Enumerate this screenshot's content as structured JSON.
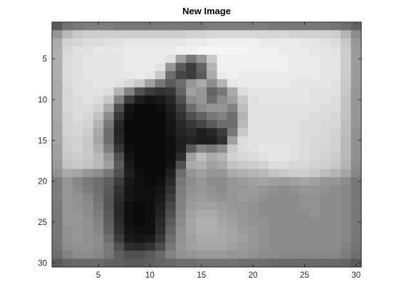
{
  "figure": {
    "title": "New Image"
  },
  "chart_data": {
    "type": "heatmap",
    "title": "New Image",
    "xlabel": "",
    "ylabel": "",
    "colormap": "gray",
    "x_tick_labels": [
      "5",
      "10",
      "15",
      "20",
      "25",
      "30"
    ],
    "y_tick_labels": [
      "5",
      "10",
      "15",
      "20",
      "25",
      "30"
    ],
    "x_ticks": [
      5,
      10,
      15,
      20,
      25,
      30
    ],
    "y_ticks": [
      5,
      10,
      15,
      20,
      25,
      30
    ],
    "xlim": [
      0.5,
      30.5
    ],
    "ylim": [
      0.5,
      30.5
    ],
    "y_direction": "reverse",
    "value_range": [
      0,
      255
    ],
    "rows": 30,
    "cols": 30,
    "values": [
      [
        90,
        115,
        120,
        125,
        125,
        125,
        120,
        120,
        120,
        120,
        120,
        120,
        120,
        120,
        120,
        125,
        125,
        125,
        125,
        125,
        125,
        120,
        120,
        120,
        120,
        120,
        120,
        115,
        110,
        100
      ],
      [
        150,
        185,
        200,
        205,
        205,
        205,
        205,
        205,
        205,
        205,
        205,
        205,
        205,
        210,
        210,
        215,
        215,
        215,
        215,
        215,
        215,
        215,
        215,
        210,
        210,
        210,
        210,
        205,
        180,
        140
      ],
      [
        170,
        210,
        215,
        220,
        220,
        225,
        225,
        230,
        230,
        230,
        230,
        230,
        230,
        235,
        235,
        240,
        240,
        240,
        240,
        240,
        235,
        235,
        235,
        235,
        230,
        230,
        225,
        220,
        200,
        150
      ],
      [
        175,
        215,
        225,
        225,
        230,
        230,
        230,
        235,
        235,
        235,
        235,
        235,
        240,
        240,
        245,
        245,
        245,
        245,
        245,
        240,
        240,
        240,
        235,
        235,
        235,
        230,
        230,
        225,
        205,
        155
      ],
      [
        175,
        220,
        225,
        230,
        230,
        230,
        230,
        235,
        235,
        235,
        235,
        225,
        160,
        120,
        150,
        200,
        240,
        240,
        240,
        240,
        240,
        240,
        240,
        235,
        235,
        235,
        230,
        230,
        205,
        155
      ],
      [
        175,
        220,
        225,
        230,
        230,
        230,
        230,
        235,
        235,
        235,
        225,
        150,
        90,
        60,
        100,
        180,
        240,
        240,
        240,
        240,
        240,
        240,
        240,
        235,
        235,
        235,
        230,
        230,
        205,
        155
      ],
      [
        175,
        220,
        225,
        230,
        230,
        230,
        230,
        230,
        235,
        230,
        200,
        110,
        70,
        60,
        90,
        170,
        235,
        240,
        235,
        235,
        235,
        235,
        235,
        235,
        235,
        235,
        230,
        230,
        205,
        155
      ],
      [
        170,
        220,
        225,
        225,
        230,
        230,
        225,
        215,
        200,
        160,
        120,
        90,
        110,
        150,
        170,
        140,
        180,
        230,
        235,
        235,
        235,
        235,
        235,
        230,
        230,
        230,
        230,
        225,
        200,
        155
      ],
      [
        170,
        215,
        225,
        225,
        225,
        220,
        180,
        130,
        80,
        60,
        50,
        55,
        100,
        160,
        150,
        100,
        120,
        170,
        220,
        230,
        230,
        230,
        230,
        230,
        230,
        225,
        225,
        225,
        200,
        150
      ],
      [
        170,
        215,
        220,
        225,
        220,
        200,
        130,
        60,
        30,
        20,
        25,
        40,
        80,
        140,
        150,
        110,
        140,
        160,
        200,
        225,
        230,
        230,
        230,
        230,
        230,
        225,
        225,
        220,
        195,
        150
      ],
      [
        170,
        215,
        220,
        220,
        210,
        170,
        80,
        20,
        10,
        10,
        15,
        30,
        60,
        110,
        140,
        150,
        150,
        130,
        190,
        225,
        225,
        225,
        225,
        225,
        225,
        225,
        220,
        220,
        195,
        150
      ],
      [
        170,
        210,
        220,
        215,
        195,
        140,
        55,
        15,
        10,
        10,
        10,
        25,
        50,
        80,
        100,
        120,
        130,
        110,
        180,
        225,
        225,
        225,
        225,
        225,
        225,
        220,
        220,
        215,
        195,
        150
      ],
      [
        165,
        210,
        215,
        210,
        180,
        120,
        40,
        10,
        10,
        10,
        10,
        20,
        40,
        55,
        70,
        90,
        110,
        110,
        185,
        225,
        225,
        225,
        225,
        225,
        220,
        220,
        215,
        215,
        190,
        150
      ],
      [
        165,
        210,
        215,
        205,
        170,
        110,
        35,
        10,
        10,
        10,
        10,
        20,
        35,
        45,
        30,
        40,
        60,
        120,
        200,
        225,
        225,
        225,
        225,
        225,
        220,
        220,
        215,
        210,
        190,
        145
      ],
      [
        165,
        205,
        210,
        200,
        165,
        110,
        40,
        10,
        10,
        10,
        10,
        15,
        30,
        35,
        30,
        30,
        50,
        160,
        220,
        225,
        225,
        225,
        225,
        225,
        220,
        215,
        215,
        210,
        185,
        145
      ],
      [
        160,
        205,
        210,
        200,
        175,
        125,
        55,
        15,
        10,
        10,
        10,
        15,
        30,
        90,
        130,
        120,
        140,
        200,
        220,
        225,
        230,
        230,
        230,
        225,
        220,
        215,
        215,
        210,
        185,
        145
      ],
      [
        160,
        200,
        205,
        200,
        185,
        150,
        80,
        20,
        10,
        10,
        10,
        15,
        45,
        160,
        190,
        170,
        180,
        210,
        215,
        220,
        225,
        230,
        230,
        225,
        220,
        215,
        210,
        205,
        185,
        145
      ],
      [
        155,
        195,
        200,
        195,
        185,
        160,
        90,
        25,
        10,
        10,
        10,
        20,
        80,
        170,
        175,
        160,
        170,
        195,
        200,
        205,
        210,
        220,
        220,
        215,
        215,
        210,
        205,
        200,
        180,
        140
      ],
      [
        145,
        170,
        165,
        150,
        140,
        120,
        80,
        30,
        15,
        10,
        10,
        30,
        110,
        150,
        160,
        150,
        150,
        170,
        175,
        180,
        185,
        195,
        200,
        205,
        205,
        200,
        190,
        180,
        165,
        135
      ],
      [
        125,
        150,
        135,
        120,
        110,
        95,
        60,
        25,
        15,
        10,
        15,
        40,
        120,
        140,
        150,
        140,
        140,
        150,
        155,
        160,
        165,
        160,
        155,
        160,
        165,
        160,
        150,
        150,
        140,
        120
      ],
      [
        125,
        150,
        140,
        125,
        110,
        90,
        50,
        20,
        15,
        15,
        20,
        50,
        125,
        145,
        150,
        145,
        140,
        150,
        150,
        155,
        150,
        145,
        140,
        145,
        150,
        150,
        145,
        140,
        135,
        120
      ],
      [
        125,
        150,
        145,
        135,
        115,
        85,
        45,
        20,
        15,
        15,
        25,
        60,
        130,
        150,
        155,
        150,
        145,
        150,
        155,
        150,
        145,
        140,
        140,
        140,
        145,
        145,
        140,
        140,
        135,
        120
      ],
      [
        120,
        150,
        145,
        140,
        120,
        85,
        40,
        15,
        10,
        15,
        30,
        70,
        130,
        155,
        160,
        160,
        155,
        150,
        150,
        145,
        140,
        140,
        140,
        140,
        145,
        145,
        140,
        140,
        135,
        120
      ],
      [
        120,
        150,
        150,
        140,
        125,
        90,
        40,
        15,
        10,
        15,
        35,
        80,
        135,
        160,
        170,
        170,
        160,
        155,
        150,
        145,
        140,
        140,
        140,
        140,
        140,
        145,
        140,
        140,
        135,
        120
      ],
      [
        120,
        150,
        150,
        145,
        130,
        95,
        45,
        15,
        10,
        15,
        40,
        90,
        140,
        165,
        175,
        175,
        165,
        160,
        150,
        145,
        145,
        140,
        140,
        140,
        140,
        140,
        140,
        140,
        135,
        120
      ],
      [
        120,
        145,
        150,
        145,
        135,
        100,
        50,
        20,
        15,
        15,
        45,
        100,
        145,
        165,
        175,
        175,
        170,
        165,
        155,
        150,
        145,
        140,
        140,
        140,
        140,
        140,
        140,
        140,
        135,
        120
      ],
      [
        120,
        145,
        150,
        145,
        140,
        110,
        60,
        25,
        20,
        25,
        55,
        110,
        145,
        160,
        170,
        170,
        170,
        165,
        160,
        150,
        145,
        140,
        140,
        140,
        140,
        140,
        140,
        140,
        135,
        120
      ],
      [
        115,
        140,
        145,
        145,
        140,
        120,
        80,
        45,
        40,
        50,
        75,
        120,
        150,
        160,
        165,
        165,
        165,
        160,
        155,
        150,
        145,
        140,
        140,
        140,
        140,
        140,
        140,
        140,
        130,
        115
      ],
      [
        110,
        130,
        140,
        140,
        135,
        120,
        95,
        80,
        80,
        90,
        105,
        130,
        145,
        150,
        155,
        155,
        155,
        150,
        150,
        145,
        140,
        140,
        135,
        135,
        135,
        135,
        135,
        135,
        125,
        110
      ],
      [
        90,
        100,
        105,
        105,
        105,
        100,
        95,
        90,
        90,
        95,
        100,
        105,
        110,
        110,
        115,
        115,
        115,
        115,
        110,
        110,
        110,
        105,
        105,
        105,
        105,
        105,
        105,
        105,
        100,
        90
      ]
    ]
  }
}
